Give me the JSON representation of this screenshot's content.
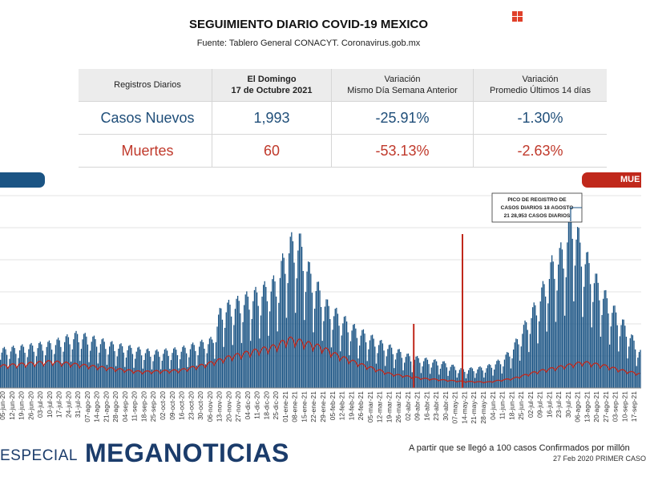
{
  "header": {
    "title": "SEGUIMIENTO DIARIO COVID-19 MEXICO",
    "source": "Fuente: Tablero General CONACYT. Coronavirus.gob.mx"
  },
  "stats_table": {
    "headers": [
      "Registros Diarios",
      "El Domingo\n17 de Octubre 2021",
      "Variación\nMismo Día Semana Anterior",
      "Variación\nPromedio Últimos 14 días"
    ],
    "rows": [
      {
        "label": "Casos Nuevos",
        "value": "1,993",
        "week_var": "-25.91%",
        "avg14_var": "-1.30%"
      },
      {
        "label": "Muertes",
        "value": "60",
        "week_var": "-53.13%",
        "avg14_var": "-2.63%"
      }
    ]
  },
  "tabs": {
    "left_label": "",
    "right_label": "MUE"
  },
  "colors": {
    "cases": "#1b5484",
    "deaths": "#c0281b",
    "brand": "#1b3c6b",
    "accent": "#e0402a"
  },
  "chart_data": {
    "type": "bar",
    "annotation": "PICO DE REGISTRO DE CASOS DIARIOS 18 AGOSTO 21 28,953 CASOS DIARIOS",
    "x_ticks": [
      "05-jun-20",
      "19-jun-20",
      "03-jul-20",
      "17-jul-20",
      "31-jul-20",
      "14-ago-20",
      "28-ago-20",
      "11-sep-20",
      "25-sep-20",
      "09-oct-20",
      "23-oct-20",
      "06-nov-20",
      "20-nov-20",
      "04-dic-20",
      "18-dic-20",
      "01-ene-21",
      "15-ene-21",
      "29-ene-21",
      "12-feb-21",
      "26-feb-21",
      "12-mar-21",
      "26-mar-21",
      "09-abr-21",
      "23-abr-21",
      "07-may-21",
      "21-may-21",
      "04-jun-21",
      "18-jun-21",
      "02-jul-21",
      "16-jul-21",
      "30-jul-21",
      "13-ago-21",
      "27-ago-21",
      "10-sep-21"
    ],
    "x_ticks_alt": [
      "12-jun-20",
      "26-jun-20",
      "10-jul-20",
      "24-jul-20",
      "07-ago-20",
      "21-ago-20",
      "04-sep-20",
      "18-sep-20",
      "02-oct-20",
      "16-oct-20",
      "30-oct-20",
      "13-nov-20",
      "27-nov-20",
      "11-dic-20",
      "25-dic-20",
      "08-ene-21",
      "22-ene-21",
      "05-feb-21",
      "19-feb-21",
      "05-mar-21",
      "19-mar-21",
      "02-abr-21",
      "16-abr-21",
      "30-abr-21",
      "14-may-21",
      "28-may-21",
      "11-jun-21",
      "25-jun-21",
      "09-jul-21",
      "23-jul-21",
      "06-ago-21",
      "20-ago-21",
      "03-sep-21",
      "17-sep-21"
    ],
    "series": [
      {
        "key": "cases",
        "color": "#1b5484",
        "anchors": [
          [
            0,
            5500
          ],
          [
            40,
            6500
          ],
          [
            60,
            7800
          ],
          [
            90,
            6200
          ],
          [
            120,
            5200
          ],
          [
            140,
            5600
          ],
          [
            165,
            7000
          ],
          [
            172,
            11500
          ],
          [
            185,
            12500
          ],
          [
            200,
            13800
          ],
          [
            215,
            15500
          ],
          [
            225,
            21000
          ],
          [
            233,
            21500
          ],
          [
            242,
            16500
          ],
          [
            255,
            12000
          ],
          [
            275,
            8800
          ],
          [
            295,
            6700
          ],
          [
            320,
            4500
          ],
          [
            345,
            3700
          ],
          [
            360,
            2700
          ],
          [
            378,
            3000
          ],
          [
            392,
            4200
          ],
          [
            400,
            6000
          ],
          [
            410,
            9500
          ],
          [
            420,
            13000
          ],
          [
            430,
            18000
          ],
          [
            440,
            20500
          ],
          [
            445,
            26000
          ],
          [
            452,
            21000
          ],
          [
            465,
            15500
          ],
          [
            476,
            12000
          ],
          [
            487,
            9000
          ],
          [
            500,
            5000
          ]
        ]
      },
      {
        "key": "deaths",
        "color": "#c0281b",
        "anchors": [
          [
            0,
            3000
          ],
          [
            40,
            3600
          ],
          [
            80,
            2800
          ],
          [
            110,
            2200
          ],
          [
            140,
            2400
          ],
          [
            160,
            3200
          ],
          [
            180,
            4300
          ],
          [
            200,
            5100
          ],
          [
            215,
            5700
          ],
          [
            225,
            6700
          ],
          [
            235,
            6300
          ],
          [
            250,
            5600
          ],
          [
            265,
            4300
          ],
          [
            285,
            3000
          ],
          [
            305,
            1900
          ],
          [
            330,
            1300
          ],
          [
            360,
            900
          ],
          [
            380,
            800
          ],
          [
            400,
            1300
          ],
          [
            420,
            2300
          ],
          [
            440,
            3000
          ],
          [
            455,
            3500
          ],
          [
            470,
            3100
          ],
          [
            485,
            2400
          ],
          [
            500,
            1900
          ]
        ]
      }
    ],
    "spikes": [
      {
        "day": 322,
        "value": 10000
      },
      {
        "day": 360,
        "value": 24000
      }
    ]
  },
  "footer": {
    "especial": "ESPECIAL",
    "brand": "MEGANOTICIAS",
    "note": "A partir que se llegó a 100 casos Confirmados por millón",
    "note2": "27 Feb 2020 PRIMER CASO"
  }
}
